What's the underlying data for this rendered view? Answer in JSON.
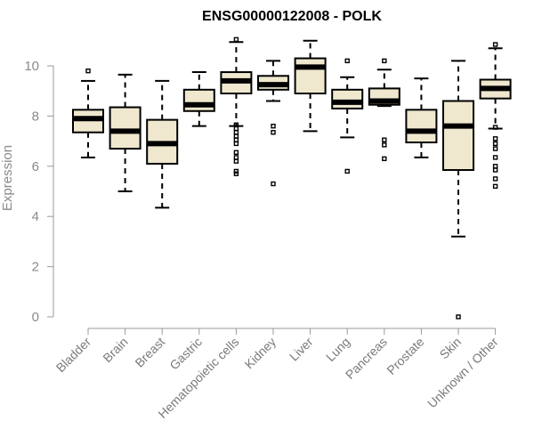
{
  "chart_data": {
    "type": "boxplot",
    "title": "ENSG00000122008 - POLK",
    "ylabel": "Expression",
    "xlabel": "",
    "ylim": [
      0,
      11
    ],
    "yticks": [
      0,
      2,
      4,
      6,
      8,
      10
    ],
    "box_color": "#efe8cf",
    "categories": [
      "Bladder",
      "Brain",
      "Breast",
      "Gastric",
      "Hematopoietic cells",
      "Kidney",
      "Liver",
      "Lung",
      "Pancreas",
      "Prostate",
      "Skin",
      "Unknown / Other"
    ],
    "boxes": [
      {
        "label": "Bladder",
        "whisker_low": 6.35,
        "q1": 7.35,
        "median": 7.9,
        "q3": 8.25,
        "whisker_high": 9.4,
        "outliers": [
          9.8
        ]
      },
      {
        "label": "Brain",
        "whisker_low": 5.0,
        "q1": 6.7,
        "median": 7.4,
        "q3": 8.35,
        "whisker_high": 9.65,
        "outliers": []
      },
      {
        "label": "Breast",
        "whisker_low": 4.35,
        "q1": 6.1,
        "median": 6.9,
        "q3": 7.85,
        "whisker_high": 9.4,
        "outliers": []
      },
      {
        "label": "Gastric",
        "whisker_low": 7.6,
        "q1": 8.2,
        "median": 8.45,
        "q3": 9.05,
        "whisker_high": 9.75,
        "outliers": []
      },
      {
        "label": "Hematopoietic cells",
        "whisker_low": 7.6,
        "q1": 8.9,
        "median": 9.4,
        "q3": 9.75,
        "whisker_high": 10.95,
        "outliers": [
          11.05,
          7.65,
          7.5,
          7.35,
          7.2,
          7.05,
          6.9,
          6.55,
          6.35,
          6.2,
          5.8,
          5.7
        ]
      },
      {
        "label": "Kidney",
        "whisker_low": 8.6,
        "q1": 9.05,
        "median": 9.25,
        "q3": 9.6,
        "whisker_high": 10.2,
        "outliers": [
          7.6,
          7.35,
          5.3
        ]
      },
      {
        "label": "Liver",
        "whisker_low": 7.4,
        "q1": 8.9,
        "median": 9.95,
        "q3": 10.3,
        "whisker_high": 11.0,
        "outliers": []
      },
      {
        "label": "Lung",
        "whisker_low": 7.15,
        "q1": 8.3,
        "median": 8.55,
        "q3": 9.05,
        "whisker_high": 9.55,
        "outliers": [
          10.2,
          5.8
        ]
      },
      {
        "label": "Pancreas",
        "whisker_low": 8.4,
        "q1": 8.45,
        "median": 8.6,
        "q3": 9.1,
        "whisker_high": 9.85,
        "outliers": [
          10.2,
          7.05,
          6.85,
          6.3
        ]
      },
      {
        "label": "Prostate",
        "whisker_low": 6.35,
        "q1": 6.95,
        "median": 7.4,
        "q3": 8.25,
        "whisker_high": 9.5,
        "outliers": []
      },
      {
        "label": "Skin",
        "whisker_low": 3.2,
        "q1": 5.85,
        "median": 7.6,
        "q3": 8.6,
        "whisker_high": 10.2,
        "outliers": [
          0.0
        ]
      },
      {
        "label": "Unknown / Other",
        "whisker_low": 7.5,
        "q1": 8.7,
        "median": 9.1,
        "q3": 9.45,
        "whisker_high": 10.7,
        "outliers": [
          10.85,
          7.55,
          7.1,
          6.9,
          6.7,
          6.35,
          6.0,
          5.85,
          5.5,
          5.2
        ]
      }
    ]
  }
}
